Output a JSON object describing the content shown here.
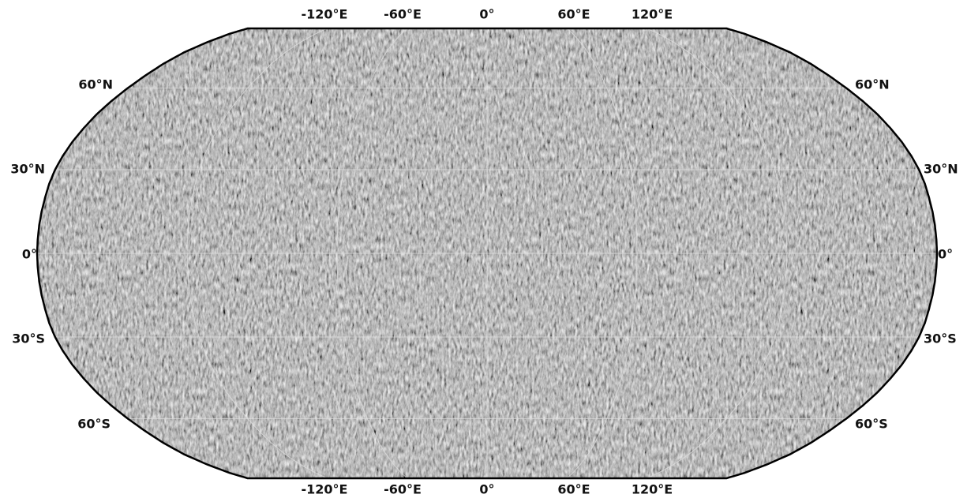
{
  "map": {
    "top_labels": [
      "-120°E",
      "-60°E",
      "0°",
      "60°E",
      "120°E"
    ],
    "bottom_labels": [
      "-120°E",
      "-60°E",
      "0°",
      "60°E",
      "120°E"
    ],
    "left_labels": [
      "60°N",
      "30°N",
      "0°",
      "30°S",
      "60°S"
    ],
    "right_labels": [
      "60°N",
      "30°N",
      "0°",
      "30°S",
      "60°S"
    ]
  }
}
